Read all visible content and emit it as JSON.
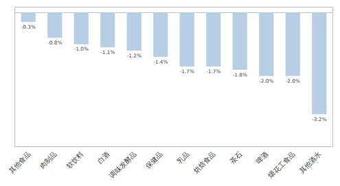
{
  "chart_data": {
    "type": "bar",
    "categories": [
      "其他食品",
      "肉制品",
      "软饮料",
      "白酒",
      "调味发酵品",
      "保健品",
      "乳品",
      "烘焙食品",
      "茶石",
      "啤酒",
      "烟花工食品",
      "其他酒水"
    ],
    "values": [
      -0.3,
      -0.8,
      -1.0,
      -1.1,
      -1.2,
      -1.4,
      -1.7,
      -1.7,
      -1.8,
      -2.0,
      -2.0,
      -3.2
    ],
    "value_labels": [
      "-0.3%",
      "-0.8%",
      "-1.0%",
      "-1.1%",
      "-1.2%",
      "-1.4%",
      "-1.7%",
      "-1.7%",
      "-1.8%",
      "-2.0%",
      "-2.0%",
      "-3.2%"
    ],
    "color": "#b8cfe3",
    "ylim": [
      -4.2,
      0.15
    ],
    "data_labels": true,
    "tick_labels": "x",
    "grid": false
  }
}
